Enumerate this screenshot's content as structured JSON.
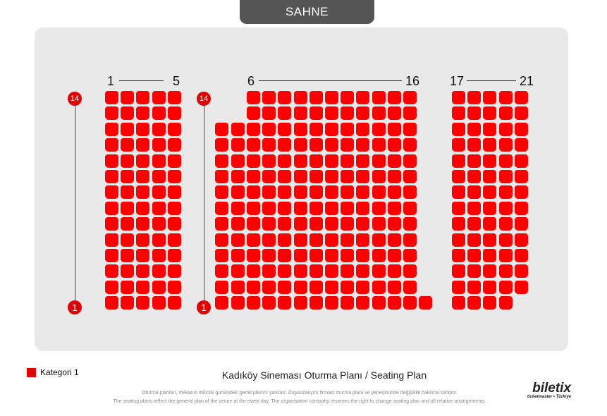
{
  "stage": {
    "label": "SAHNE"
  },
  "columns": {
    "left": {
      "from": "1",
      "to": "5"
    },
    "center": {
      "from": "6",
      "to": "16"
    },
    "right": {
      "from": "17",
      "to": "21"
    }
  },
  "rows": {
    "top": "14",
    "bottom": "1"
  },
  "seat_blocks": [
    {
      "name": "left",
      "columns": 5,
      "rows": 14
    },
    {
      "name": "center",
      "columns": 11,
      "rows": 14,
      "front_extra_left_rows": 12,
      "front_extra_right_rows": 1
    },
    {
      "name": "right",
      "columns": 5,
      "rows": 14,
      "missing_front_right": 1
    }
  ],
  "legend": {
    "label": "Kategori 1",
    "color": "#e30000"
  },
  "title": "Kadıköy Sineması Oturma Planı / Seating Plan",
  "notes": {
    "tr": "Oturma planları, mekanın etkinlik günündeki genel planını yansıtır. Organizasyon firması oturma planı ve yerleşiminde değişiklik hakkına sahiptir.",
    "en": "The seating plans reflect the general plan of the venue at the event day. The organisation company reserves the right to change seating plan and all relative arrangements."
  },
  "brand": {
    "name": "biletix",
    "sub": "ticketmaster • Türkiye"
  }
}
